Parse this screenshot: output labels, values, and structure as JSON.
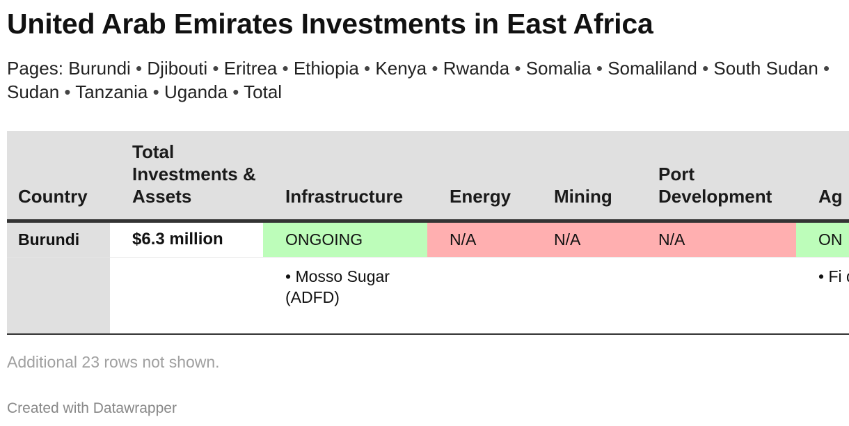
{
  "title": "United Arab Emirates Investments in East Africa",
  "pages": {
    "label": "Pages:",
    "items": [
      "Burundi",
      "Djibouti",
      "Eritrea",
      "Ethiopia",
      "Kenya",
      "Rwanda",
      "Somalia",
      "Somaliland",
      "South Sudan",
      "Sudan",
      "Tanzania",
      "Uganda",
      "Total"
    ],
    "separator": "•"
  },
  "table": {
    "headers": [
      "Country",
      "Total Investments & Assets",
      "Infrastructure",
      "Energy",
      "Mining",
      "Port Development",
      "Ag"
    ],
    "row": {
      "country": "Burundi",
      "total": "$6.3 million",
      "infrastructure": "ONGOING",
      "energy": "N/A",
      "mining": "N/A",
      "port": "N/A",
      "agriculture": "ON"
    },
    "details": {
      "infrastructure": "• Mosso Sugar (ADFD)",
      "agriculture": "• Fi dev (AD"
    }
  },
  "colors": {
    "ongoing": "#bdfdba",
    "na": "#ffafb0",
    "header_bg": "#e0e0e0"
  },
  "note": "Additional 23 rows not shown.",
  "credit": "Created with Datawrapper"
}
